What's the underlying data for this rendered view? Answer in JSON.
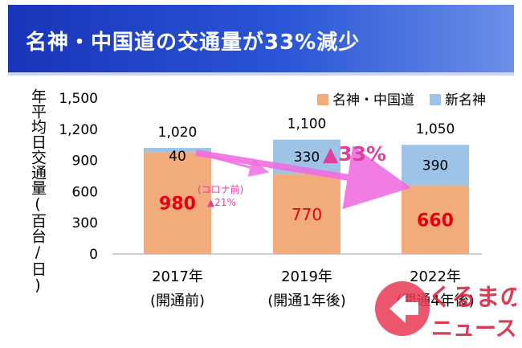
{
  "title": "名神・中国道の交通量が33%減少",
  "colors": {
    "banner": "#2346c4",
    "meishin": "#f2ac7c",
    "shinmeishin": "#9dc3e6",
    "highlight_red": "#e60012",
    "arrow": "#f06ee0",
    "annotation": "#e0409c"
  },
  "chart_data": {
    "type": "bar",
    "stacked": true,
    "ylabel": "年平均日交通量(百台/日)",
    "ylim": [
      0,
      1500
    ],
    "yticks": [
      "0",
      "300",
      "600",
      "900",
      "1,200",
      "1,500"
    ],
    "ytick_values": [
      0,
      300,
      600,
      900,
      1200,
      1500
    ],
    "categories": [
      {
        "year": "2017年",
        "note": "(開通前)"
      },
      {
        "year": "2019年",
        "note": "(開通1年後)"
      },
      {
        "year": "2022年",
        "note": "(開通4年後)"
      }
    ],
    "series": [
      {
        "name": "名神・中国道",
        "values": [
          980,
          770,
          660
        ],
        "labels": [
          "980",
          "770",
          "660"
        ],
        "label_colors": [
          "#e60012",
          "#e60012",
          "#e60012"
        ]
      },
      {
        "name": "新名神",
        "values": [
          40,
          330,
          390
        ],
        "labels": [
          "40",
          "330",
          "390"
        ]
      }
    ],
    "totals": [
      "1,020",
      "1,100",
      "1,050"
    ],
    "legend_position": "top-right",
    "grid": false,
    "annotations": {
      "covid_note": "(コロナ前)",
      "covid_change": "▲21%",
      "total_change": "▲33%"
    }
  },
  "watermark": {
    "line1": "くるまの",
    "line2": "ニュース"
  }
}
